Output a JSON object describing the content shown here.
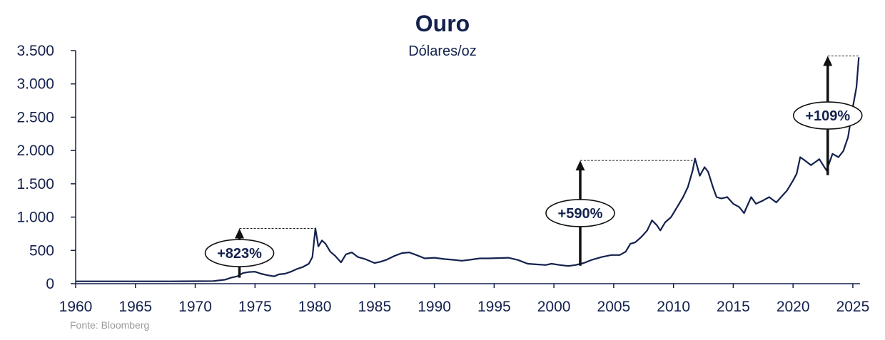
{
  "chart_data": {
    "type": "line",
    "title": "Ouro",
    "subtitle": "Dólares/oz",
    "source": "Fonte: Bloomberg",
    "xlabel": "",
    "ylabel": "",
    "xlim": [
      1960,
      2025.6
    ],
    "ylim": [
      0,
      3500
    ],
    "x_ticks": [
      1960,
      1965,
      1970,
      1975,
      1980,
      1985,
      1990,
      1995,
      2000,
      2005,
      2010,
      2015,
      2020,
      2025
    ],
    "x_tick_labels": [
      "1960",
      "1965",
      "1970",
      "1975",
      "1980",
      "1985",
      "1990",
      "1995",
      "2000",
      "2005",
      "2010",
      "2015",
      "2020",
      "2025"
    ],
    "y_ticks": [
      0,
      500,
      1000,
      1500,
      2000,
      2500,
      3000,
      3500
    ],
    "y_tick_labels": [
      "0",
      "500",
      "1.000",
      "1.500",
      "2.000",
      "2.500",
      "3.000",
      "3.500"
    ],
    "grid": false,
    "line_color": "#13214d",
    "text_color": "#13214d",
    "series": [
      {
        "x": [
          1960,
          1968,
          1971.5,
          1972.5,
          1973.0,
          1973.5,
          1974.0,
          1974.5,
          1975.0,
          1975.5,
          1976.0,
          1976.6,
          1977.0,
          1977.5,
          1978.0,
          1978.5,
          1979.0,
          1979.5,
          1979.8,
          1980.05,
          1980.3,
          1980.6,
          1980.9,
          1981.3,
          1981.7,
          1982.2,
          1982.6,
          1983.1,
          1983.6,
          1984.2,
          1985.0,
          1985.5,
          1986.0,
          1986.7,
          1987.3,
          1987.9,
          1988.5,
          1989.2,
          1990.0,
          1990.8,
          1991.5,
          1992.3,
          1993.0,
          1993.8,
          1994.5,
          1995.5,
          1996.2,
          1997.0,
          1997.8,
          1998.5,
          1999.3,
          1999.8,
          2000.5,
          2001.2,
          2001.8,
          2002.5,
          2003.2,
          2004.0,
          2004.8,
          2005.5,
          2006.0,
          2006.4,
          2006.8,
          2007.3,
          2007.8,
          2008.2,
          2008.6,
          2008.9,
          2009.3,
          2009.8,
          2010.3,
          2010.8,
          2011.2,
          2011.6,
          2011.8,
          2012.2,
          2012.6,
          2012.9,
          2013.3,
          2013.6,
          2014.0,
          2014.5,
          2015.0,
          2015.5,
          2015.9,
          2016.5,
          2016.9,
          2017.5,
          2018.0,
          2018.6,
          2019.0,
          2019.5,
          2020.0,
          2020.3,
          2020.6,
          2021.0,
          2021.5,
          2022.2,
          2022.8,
          2023.3,
          2023.8,
          2024.2,
          2024.6,
          2025.0,
          2025.3,
          2025.5
        ],
        "y": [
          35,
          35,
          40,
          60,
          90,
          110,
          160,
          175,
          180,
          150,
          130,
          110,
          140,
          150,
          180,
          220,
          250,
          300,
          400,
          830,
          560,
          650,
          600,
          480,
          420,
          320,
          440,
          470,
          400,
          370,
          310,
          330,
          360,
          420,
          460,
          470,
          430,
          380,
          390,
          370,
          360,
          345,
          360,
          380,
          380,
          385,
          390,
          355,
          300,
          290,
          280,
          300,
          280,
          265,
          280,
          310,
          360,
          400,
          430,
          430,
          480,
          600,
          620,
          700,
          800,
          950,
          880,
          800,
          920,
          1000,
          1150,
          1300,
          1450,
          1700,
          1880,
          1620,
          1750,
          1680,
          1450,
          1300,
          1280,
          1300,
          1200,
          1150,
          1060,
          1300,
          1200,
          1250,
          1300,
          1220,
          1300,
          1400,
          1550,
          1650,
          1900,
          1850,
          1780,
          1870,
          1700,
          1950,
          1900,
          1990,
          2200,
          2650,
          2950,
          3400
        ]
      }
    ],
    "annotations": [
      {
        "label": "+823%",
        "x": 1973.7,
        "y_from": 90,
        "y_to": 830,
        "ref_x_end": 1980.0
      },
      {
        "label": "+590%",
        "x": 2002.2,
        "y_from": 270,
        "y_to": 1850,
        "ref_x_end": 2011.6
      },
      {
        "label": "+109%",
        "x": 2022.9,
        "y_from": 1630,
        "y_to": 3420,
        "ref_x_end": 2025.5
      }
    ]
  }
}
